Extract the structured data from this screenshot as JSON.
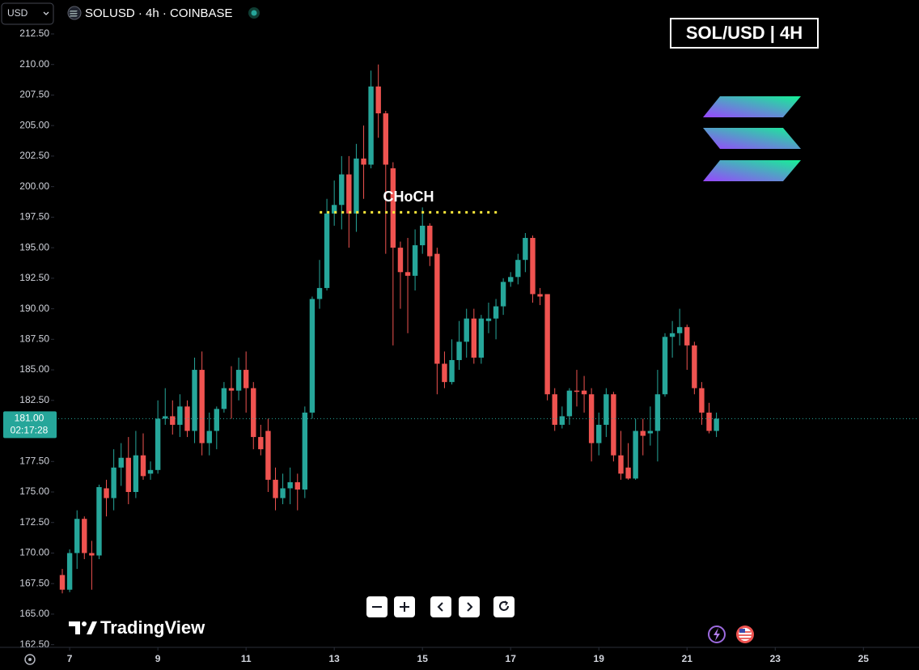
{
  "ui": {
    "currency": "USD",
    "symbol": "SOLUSD · 4h · COINBASE",
    "badge": "SOL/USD | 4H",
    "brand": "TradingView"
  },
  "chart_data": {
    "type": "candlestick",
    "x": [
      6.833,
      7,
      7.167,
      7.333,
      7.5,
      7.667,
      7.833,
      8,
      8.167,
      8.333,
      8.5,
      8.667,
      8.833,
      9,
      9.167,
      9.333,
      9.5,
      9.667,
      9.833,
      10,
      10.167,
      10.333,
      10.5,
      10.667,
      10.833,
      11,
      11.167,
      11.333,
      11.5,
      11.667,
      11.833,
      12,
      12.167,
      12.333,
      12.5,
      12.667,
      12.833,
      13,
      13.167,
      13.333,
      13.5,
      13.667,
      13.833,
      14,
      14.167,
      14.333,
      14.5,
      14.667,
      14.833,
      15,
      15.167,
      15.333,
      15.5,
      15.667,
      15.833,
      16,
      16.167,
      16.333,
      16.5,
      16.667,
      16.833,
      17,
      17.167,
      17.333,
      17.5,
      17.667,
      17.833,
      18,
      18.167,
      18.333,
      18.5,
      18.667,
      18.833,
      19,
      19.167,
      19.333,
      19.5,
      19.667,
      19.833,
      20,
      20.167,
      20.333,
      20.5,
      20.667,
      20.833,
      21,
      21.167,
      21.333,
      21.5,
      21.667
    ],
    "open": [
      168.2,
      167,
      170,
      172.8,
      170,
      169.8,
      175.3,
      174.5,
      177,
      177.8,
      175,
      178,
      176.5,
      176.8,
      181,
      181.2,
      180.5,
      182,
      180,
      185,
      179,
      180,
      181.8,
      183.5,
      183.3,
      185,
      183.5,
      179.5,
      180,
      176,
      174.5,
      175.3,
      175.8,
      175.2,
      181.5,
      190.8,
      191.7,
      197.8,
      198.5,
      201,
      197.8,
      202.3,
      201.8,
      208.2,
      206,
      201.5,
      195,
      193,
      192.7,
      195.2,
      196.8,
      194.5,
      185.5,
      184,
      185.8,
      187.3,
      189.2,
      186,
      189,
      189.2,
      190.2,
      192.2,
      192.6,
      194,
      195.8,
      191.2,
      191.2,
      183,
      180.5,
      181.2,
      183.3,
      183.3,
      183,
      179,
      180.5,
      183,
      178,
      177,
      176.1,
      180,
      179.8,
      180,
      183,
      187.7,
      188,
      188.5,
      187,
      183.5,
      181.5,
      180
    ],
    "high": [
      168.7,
      170.3,
      173.5,
      173,
      171,
      175.6,
      176,
      178.5,
      179,
      179.5,
      180,
      179.8,
      177.5,
      182.5,
      183.5,
      182.5,
      183,
      182.5,
      186,
      186.5,
      181.5,
      182,
      184,
      185.3,
      186,
      186.5,
      184,
      180.5,
      181,
      177,
      176.5,
      177,
      176.5,
      182,
      191,
      194,
      199,
      200.5,
      202.5,
      202.5,
      203.5,
      205,
      209.5,
      210,
      206.2,
      202,
      195.5,
      195.8,
      196.5,
      198.3,
      197,
      195,
      186.5,
      187.5,
      189,
      190,
      190,
      189.5,
      190.5,
      190.8,
      192.5,
      193,
      194.5,
      196.2,
      196,
      191.7,
      191.2,
      183.5,
      182,
      183.5,
      185,
      184.5,
      183.5,
      181.5,
      183.5,
      183.2,
      180,
      179,
      181,
      181,
      182,
      185,
      188,
      189,
      190,
      188.7,
      187.3,
      184,
      182.3,
      181.5
    ],
    "low": [
      166.7,
      166.8,
      168.7,
      169.5,
      167,
      169.5,
      173,
      173.5,
      175.5,
      174,
      174.5,
      176,
      176,
      176.5,
      180.5,
      179.7,
      179.5,
      179.5,
      179,
      178,
      178,
      178.5,
      181.5,
      181,
      182.5,
      181.5,
      178.5,
      178,
      175,
      173.5,
      174,
      174,
      173.5,
      174.5,
      181,
      190,
      191.5,
      196.8,
      196.5,
      195,
      196.3,
      199,
      201.5,
      204,
      194.5,
      187,
      190,
      188,
      191.5,
      194.5,
      193.5,
      183,
      183.5,
      183.8,
      185,
      186,
      185.5,
      185.5,
      188,
      187.5,
      189.5,
      191.8,
      192,
      193,
      190.5,
      190.3,
      182.5,
      180,
      180.2,
      180.5,
      182,
      181.5,
      177.5,
      178,
      179.5,
      177.5,
      176,
      176,
      176,
      178,
      178.8,
      177.5,
      182.8,
      186,
      187,
      185,
      183,
      180.5,
      179.8,
      179.5
    ],
    "close": [
      167,
      170,
      172.8,
      170,
      169.8,
      175.4,
      174.5,
      177,
      177.8,
      175,
      178,
      176.3,
      176.8,
      181,
      181.2,
      180.5,
      182,
      180,
      185,
      179,
      180,
      181.8,
      183.5,
      183.3,
      185,
      183.5,
      179.5,
      178.5,
      176,
      174.5,
      175.3,
      175.8,
      175.2,
      181.5,
      190.8,
      191.7,
      197.8,
      198.5,
      201,
      197.8,
      202.3,
      201.8,
      208.2,
      206,
      201.8,
      195,
      193,
      192.7,
      195.2,
      196.8,
      194.3,
      185.5,
      184,
      185.8,
      187.3,
      189.2,
      186,
      189.2,
      189.2,
      190.2,
      192.2,
      192.6,
      194,
      195.8,
      191.2,
      191,
      183,
      180.5,
      181.2,
      183.3,
      183.2,
      183,
      179,
      180.5,
      183,
      178,
      176.5,
      176.1,
      180,
      179.6,
      180,
      183,
      187.7,
      188,
      188.5,
      187,
      183.5,
      181.5,
      180,
      181
    ],
    "up_color": "#26a69a",
    "down_color": "#ef5350",
    "xlim": [
      5.42,
      25.6
    ],
    "xticks": [
      7,
      9,
      11,
      13,
      15,
      17,
      19,
      21,
      23,
      25
    ],
    "ylim": [
      162.28,
      215.28
    ],
    "yticks": [
      {
        "value": 162.5,
        "label": "162.50"
      },
      {
        "value": 165,
        "label": "165.00"
      },
      {
        "value": 167.5,
        "label": "167.50"
      },
      {
        "value": 170,
        "label": "170.00"
      },
      {
        "value": 172.5,
        "label": "172.50"
      },
      {
        "value": 175,
        "label": "175.00"
      },
      {
        "value": 177.5,
        "label": "177.50"
      },
      {
        "value": 180,
        "label": "180.00"
      },
      {
        "value": 182.5,
        "label": "182.50"
      },
      {
        "value": 185,
        "label": "185.00"
      },
      {
        "value": 187.5,
        "label": "187.50"
      },
      {
        "value": 190,
        "label": "190.00"
      },
      {
        "value": 192.5,
        "label": "192.50"
      },
      {
        "value": 195,
        "label": "195.00"
      },
      {
        "value": 197.5,
        "label": "197.50"
      },
      {
        "value": 200,
        "label": "200.00"
      },
      {
        "value": 202.5,
        "label": "202.50"
      },
      {
        "value": 205,
        "label": "205.00"
      },
      {
        "value": 207.5,
        "label": "207.50"
      },
      {
        "value": 210,
        "label": "210.00"
      },
      {
        "value": 212.5,
        "label": "212.50"
      }
    ],
    "last_price": {
      "value": 181,
      "label": "181.00"
    },
    "countdown": "02:17:28",
    "annotation": {
      "text": "CHoCH",
      "level": 197.9,
      "x": [
        12.67,
        16.7
      ]
    }
  }
}
